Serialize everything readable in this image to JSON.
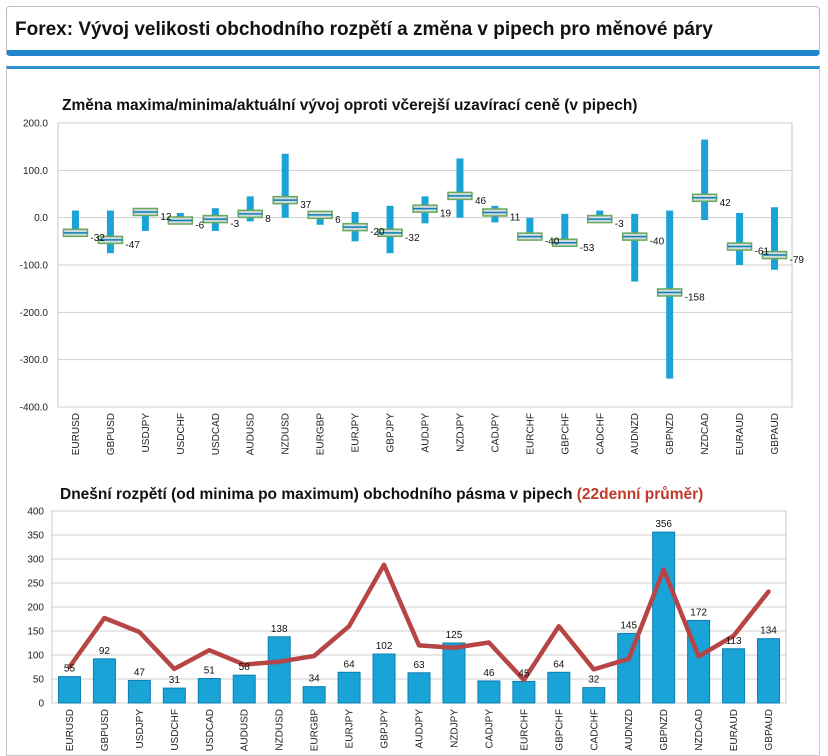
{
  "page": {
    "title": "Forex: Vývoj velikosti obchodního rozpětí a změna v pipech pro měnové páry"
  },
  "colors": {
    "bar": "#1aa3d6",
    "bar_dark": "#0d7fb0",
    "avg_line": "#b84545",
    "marker_fill": "#d2dbe2",
    "marker_edge": "#6aa85a",
    "accent": "#1f86c9"
  },
  "chart_data": [
    {
      "type": "bar",
      "title": "Změna maxima/minima/aktuální vývoj oproti včerejší uzavírací ceně (v pipech)",
      "categories": [
        "EURUSD",
        "GBPUSD",
        "USDJPY",
        "USDCHF",
        "USDCAD",
        "AUDUSD",
        "NZDUSD",
        "EURGBP",
        "EURJPY",
        "GBPJPY",
        "AUDJPY",
        "NZDJPY",
        "CADJPY",
        "EURCHF",
        "GBPCHF",
        "CADCHF",
        "AUDNZD",
        "GBPNZD",
        "NZDCAD",
        "EURAUD",
        "GBPAUD"
      ],
      "high": [
        15,
        15,
        20,
        10,
        20,
        45,
        135,
        10,
        12,
        25,
        45,
        125,
        25,
        0,
        8,
        15,
        8,
        15,
        165,
        10,
        22
      ],
      "low": [
        -38,
        -75,
        -28,
        -10,
        -28,
        -8,
        0,
        -15,
        -50,
        -75,
        -12,
        0,
        -10,
        -45,
        -58,
        -10,
        -135,
        -340,
        -5,
        -100,
        -110
      ],
      "current": [
        -32,
        -47,
        12,
        -6,
        -3,
        8,
        37,
        6,
        -20,
        -32,
        19,
        46,
        11,
        -40,
        -53,
        -3,
        -40,
        -158,
        42,
        -61,
        -79
      ],
      "labels": [
        "-32",
        "-47",
        "12",
        "-6",
        "-3",
        "8",
        "37",
        "6",
        "-20",
        "-32",
        "19",
        "46",
        "11",
        "-40",
        "-53",
        "-3",
        "-40",
        "-158",
        "42",
        "-61",
        "-79"
      ],
      "yticks": [
        "200.0",
        "100.0",
        "0.0",
        "-100.0",
        "-200.0",
        "-300.0",
        "-400.0"
      ],
      "ylim": [
        -400,
        200
      ],
      "xlabel": "",
      "ylabel": "",
      "grid": true
    },
    {
      "type": "bar",
      "title_main": "Dnešní rozpětí (od minima po maximum) obchodního pásma v pipech ",
      "title_accent": "(22denní průměr)",
      "categories": [
        "EURUSD",
        "GBPUSD",
        "USDJPY",
        "USDCHF",
        "USDCAD",
        "AUDUSD",
        "NZDUSD",
        "EURGBP",
        "EURJPY",
        "GBPJPY",
        "AUDJPY",
        "NZDJPY",
        "CADJPY",
        "EURCHF",
        "GBPCHF",
        "CADCHF",
        "AUDNZD",
        "GBPNZD",
        "NZDCAD",
        "EURAUD",
        "GBPAUD"
      ],
      "values": [
        55,
        92,
        47,
        31,
        51,
        58,
        138,
        34,
        64,
        102,
        63,
        125,
        46,
        45,
        64,
        32,
        145,
        356,
        172,
        113,
        134
      ],
      "labels": [
        "55",
        "92",
        "47",
        "31",
        "51",
        "58",
        "138",
        "34",
        "64",
        "102",
        "63",
        "125",
        "46",
        "45",
        "64",
        "32",
        "145",
        "356",
        "172",
        "113",
        "134"
      ],
      "average": [
        75,
        177,
        148,
        71,
        110,
        80,
        86,
        98,
        160,
        288,
        120,
        115,
        126,
        48,
        160,
        70,
        92,
        278,
        97,
        140,
        232
      ],
      "yticks": [
        "400",
        "350",
        "300",
        "250",
        "200",
        "150",
        "100",
        "50",
        "0"
      ],
      "ylim": [
        0,
        400
      ],
      "xlabel": "",
      "ylabel": "",
      "grid": true
    }
  ]
}
